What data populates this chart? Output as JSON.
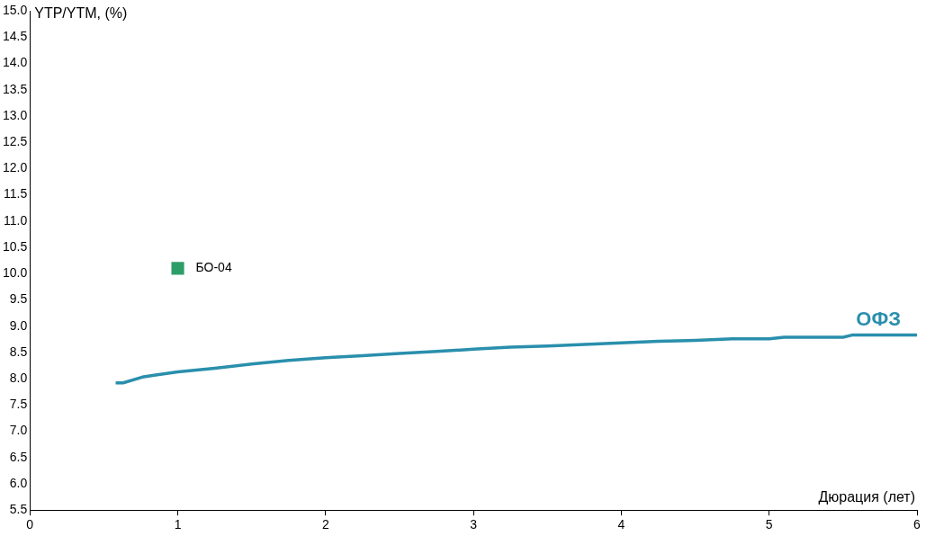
{
  "chart_data": {
    "type": "line",
    "xlabel": "Дюрация (лет)",
    "ylabel": "YTP/YTM, (%)",
    "xlim": [
      0,
      6
    ],
    "xticks": [
      0,
      1,
      2,
      3,
      4,
      5,
      6
    ],
    "ylim": [
      5.5,
      15
    ],
    "yticks": [
      {
        "value": 5.5,
        "label": "5.5"
      },
      {
        "value": 6,
        "label": "6.0"
      },
      {
        "value": 6.5,
        "label": "6.5"
      },
      {
        "value": 7,
        "label": "7.0"
      },
      {
        "value": 7.5,
        "label": "7.5"
      },
      {
        "value": 8,
        "label": "8.0"
      },
      {
        "value": 8.5,
        "label": "8.5"
      },
      {
        "value": 9,
        "label": "9.0"
      },
      {
        "value": 9.5,
        "label": "9.5"
      },
      {
        "value": 10,
        "label": "10.0"
      },
      {
        "value": 10.5,
        "label": "10.5"
      },
      {
        "value": 11,
        "label": "11.0"
      },
      {
        "value": 11.5,
        "label": "11.5"
      },
      {
        "value": 12,
        "label": "12.0"
      },
      {
        "value": 12.5,
        "label": "12.5"
      },
      {
        "value": 13,
        "label": "13.0"
      },
      {
        "value": 13.5,
        "label": "13.5"
      },
      {
        "value": 14,
        "label": "14.0"
      },
      {
        "value": 14.5,
        "label": "14.5"
      },
      {
        "value": 15,
        "label": "15.0"
      }
    ],
    "grid": false,
    "legend": false,
    "series": [
      {
        "name": "ОФЗ",
        "color": "#2a8fad",
        "marker": "none",
        "line_style": "solid",
        "x": [
          0.58,
          0.63,
          0.76,
          0.85,
          1.0,
          1.25,
          1.5,
          1.75,
          2.0,
          2.25,
          2.5,
          2.75,
          3.0,
          3.25,
          3.5,
          3.75,
          4.0,
          4.25,
          4.5,
          4.75,
          5.0,
          5.1,
          5.5,
          5.56,
          6.0
        ],
        "values": [
          7.92,
          7.92,
          8.03,
          8.07,
          8.13,
          8.2,
          8.28,
          8.35,
          8.4,
          8.44,
          8.48,
          8.52,
          8.56,
          8.6,
          8.62,
          8.65,
          8.68,
          8.71,
          8.73,
          8.76,
          8.76,
          8.79,
          8.79,
          8.83,
          8.83
        ]
      },
      {
        "name": "БО-04",
        "type": "scatter",
        "color": "#2e9e68",
        "marker": "square",
        "x": [
          1.0
        ],
        "values": [
          10.1
        ]
      }
    ]
  }
}
